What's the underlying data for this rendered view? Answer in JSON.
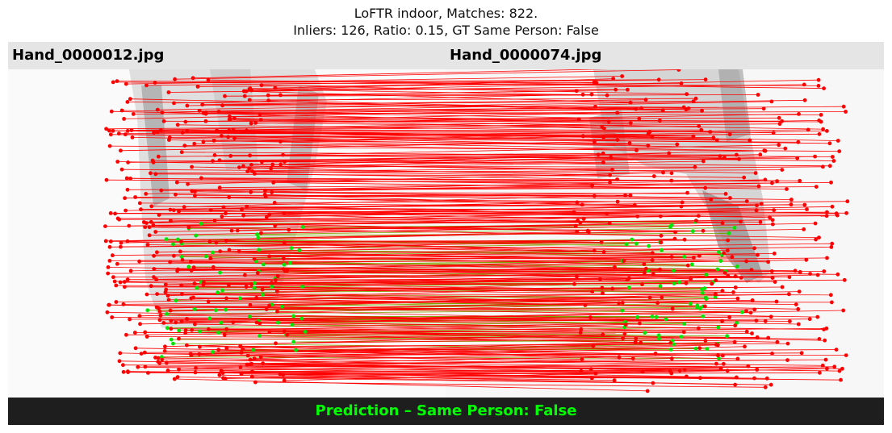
{
  "title": {
    "line1": "LoFTR indoor, Matches: 822.",
    "line2": "Inliers: 126, Ratio: 0.15, GT Same Person: False"
  },
  "images": {
    "left_name": "Hand_0000012.jpg",
    "right_name": "Hand_0000074.jpg"
  },
  "prediction": {
    "text": "Prediction – Same Person: False",
    "color": "#00ff00"
  },
  "colors": {
    "outlier": "#ff0000",
    "inlier": "#00e600",
    "name_bar": "#e5e5e5",
    "prediction_bar": "#1e1e1e"
  },
  "stats": {
    "matches": 822,
    "inliers": 126
  }
}
